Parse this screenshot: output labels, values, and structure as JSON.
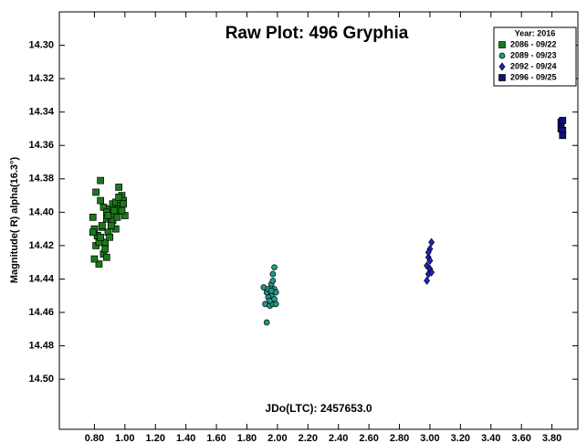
{
  "chart_data": {
    "type": "scatter",
    "title": "Raw Plot: 496 Gryphia",
    "x_label": "JDo(LTC): 2457653.0",
    "y_label": "Magnitude( R) alpha(16.3°)",
    "legend_title": "Year: 2016",
    "legend_position": "upper right",
    "y_inverted": true,
    "xlim": [
      0.57,
      3.97
    ],
    "ylim": [
      14.28,
      14.53
    ],
    "xticks": [
      {
        "value": 0.8,
        "label": "0.80"
      },
      {
        "value": 1.0,
        "label": "1.00"
      },
      {
        "value": 1.2,
        "label": "1.20"
      },
      {
        "value": 1.4,
        "label": "1.40"
      },
      {
        "value": 1.6,
        "label": "1.60"
      },
      {
        "value": 1.8,
        "label": "1.80"
      },
      {
        "value": 2.0,
        "label": "2.00"
      },
      {
        "value": 2.2,
        "label": "2.20"
      },
      {
        "value": 2.4,
        "label": "2.40"
      },
      {
        "value": 2.6,
        "label": "2.60"
      },
      {
        "value": 2.8,
        "label": "2.80"
      },
      {
        "value": 3.0,
        "label": "3.00"
      },
      {
        "value": 3.2,
        "label": "3.20"
      },
      {
        "value": 3.4,
        "label": "3.40"
      },
      {
        "value": 3.6,
        "label": "3.60"
      },
      {
        "value": 3.8,
        "label": "3.80"
      }
    ],
    "yticks": [
      {
        "value": 14.3,
        "label": "14.30"
      },
      {
        "value": 14.32,
        "label": "14.32"
      },
      {
        "value": 14.34,
        "label": "14.34"
      },
      {
        "value": 14.36,
        "label": "14.36"
      },
      {
        "value": 14.38,
        "label": "14.38"
      },
      {
        "value": 14.4,
        "label": "14.40"
      },
      {
        "value": 14.42,
        "label": "14.42"
      },
      {
        "value": 14.44,
        "label": "14.44"
      },
      {
        "value": 14.46,
        "label": "14.46"
      },
      {
        "value": 14.48,
        "label": "14.48"
      },
      {
        "value": 14.5,
        "label": "14.50"
      }
    ],
    "series": [
      {
        "name": "2086 - 09/22",
        "color": "#1a7a1a",
        "marker": "square",
        "x": [
          0.79,
          0.8,
          0.81,
          0.82,
          0.83,
          0.84,
          0.85,
          0.86,
          0.87,
          0.88,
          0.89,
          0.9,
          0.91,
          0.92,
          0.93,
          0.94,
          0.95,
          0.96,
          0.97,
          0.98,
          0.99,
          1.0,
          0.8,
          0.82,
          0.84,
          0.86,
          0.88,
          0.9,
          0.92,
          0.94,
          0.96,
          0.98,
          0.81,
          0.83,
          0.85,
          0.87,
          0.89,
          0.91,
          0.93,
          0.95,
          0.79,
          0.84,
          0.88,
          0.96,
          0.99
        ],
        "values": [
          14.403,
          14.41,
          14.42,
          14.414,
          14.431,
          14.381,
          14.409,
          14.397,
          14.418,
          14.404,
          14.412,
          14.398,
          14.406,
          14.395,
          14.402,
          14.394,
          14.4,
          14.385,
          14.396,
          14.39,
          14.393,
          14.402,
          14.428,
          14.414,
          14.393,
          14.425,
          14.4,
          14.415,
          14.405,
          14.41,
          14.398,
          14.399,
          14.388,
          14.418,
          14.408,
          14.422,
          14.402,
          14.408,
          14.399,
          14.403,
          14.412,
          14.415,
          14.427,
          14.391,
          14.395
        ]
      },
      {
        "name": "2089 - 09/23",
        "color": "#1f9a8a",
        "marker": "circle",
        "x": [
          1.91,
          1.92,
          1.93,
          1.93,
          1.94,
          1.95,
          1.95,
          1.96,
          1.96,
          1.97,
          1.97,
          1.98,
          1.98,
          1.99,
          1.99,
          1.94,
          1.96,
          1.97,
          1.95,
          1.98
        ],
        "values": [
          14.445,
          14.455,
          14.466,
          14.448,
          14.446,
          14.456,
          14.452,
          14.443,
          14.45,
          14.437,
          14.455,
          14.433,
          14.446,
          14.448,
          14.455,
          14.451,
          14.447,
          14.441,
          14.453,
          14.452
        ]
      },
      {
        "name": "2092 - 09/24",
        "color": "#2222cc",
        "marker": "diamond",
        "x": [
          2.98,
          2.98,
          2.99,
          2.99,
          3.0,
          3.0,
          3.0,
          3.01,
          3.01,
          2.99
        ],
        "values": [
          14.441,
          14.432,
          14.437,
          14.427,
          14.429,
          14.422,
          14.434,
          14.418,
          14.436,
          14.424
        ]
      },
      {
        "name": "2096 - 09/25",
        "color": "#111177",
        "marker": "square",
        "x": [
          3.86,
          3.86,
          3.87,
          3.87,
          3.87
        ],
        "values": [
          14.346,
          14.35,
          14.345,
          14.351,
          14.354
        ]
      }
    ]
  }
}
